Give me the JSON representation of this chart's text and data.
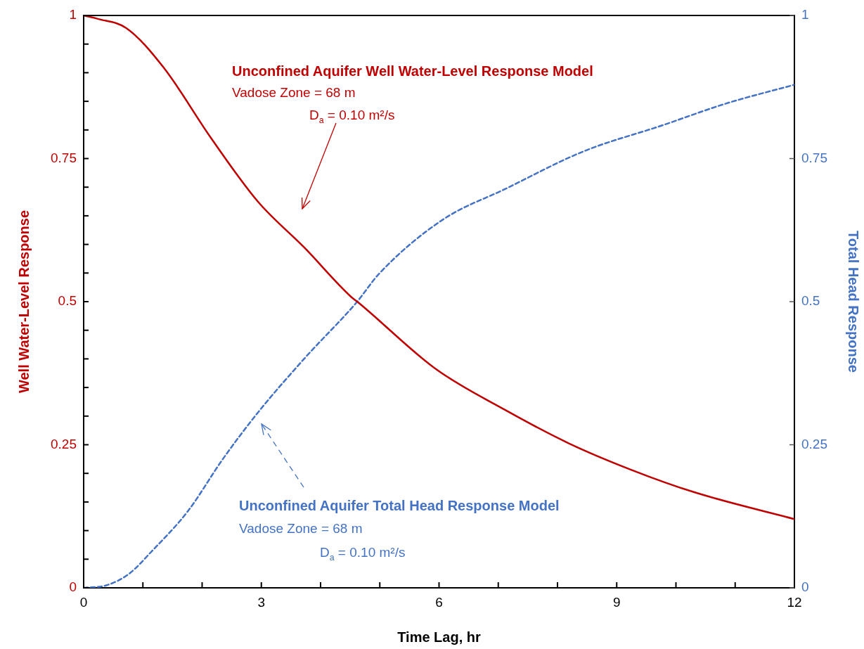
{
  "chart_data": {
    "type": "line",
    "xlabel": "Time Lag, hr",
    "ylabel": "Well Water-Level Response",
    "y2label": "Total Head Response",
    "xlim": [
      0,
      12
    ],
    "xticks": [
      0,
      {
        "value": 1,
        "label": null
      },
      {
        "value": 2,
        "label": null
      },
      3,
      {
        "value": 4,
        "label": null
      },
      {
        "value": 5,
        "label": null
      },
      6,
      {
        "value": 7,
        "label": null
      },
      {
        "value": 8,
        "label": null
      },
      9,
      {
        "value": 10,
        "label": null
      },
      {
        "value": 11,
        "label": null
      },
      12
    ],
    "ylim": [
      0,
      1
    ],
    "yticks": [
      0,
      {
        "value": 0.05,
        "label": null
      },
      {
        "value": 0.1,
        "label": null
      },
      {
        "value": 0.15,
        "label": null
      },
      {
        "value": 0.2,
        "label": null
      },
      0.25,
      {
        "value": 0.3,
        "label": null
      },
      {
        "value": 0.35,
        "label": null
      },
      {
        "value": 0.4,
        "label": null
      },
      {
        "value": 0.45,
        "label": null
      },
      0.5,
      {
        "value": 0.55,
        "label": null
      },
      {
        "value": 0.6,
        "label": null
      },
      {
        "value": 0.65,
        "label": null
      },
      {
        "value": 0.7,
        "label": null
      },
      0.75,
      {
        "value": 0.8,
        "label": null
      },
      {
        "value": 0.85,
        "label": null
      },
      {
        "value": 0.9,
        "label": null
      },
      {
        "value": 0.95,
        "label": null
      },
      1
    ],
    "y2lim": [
      0,
      1
    ],
    "y2ticks": [
      0,
      0.25,
      0.5,
      0.75,
      1
    ],
    "grid": false,
    "legend": false,
    "marker": "none",
    "series": [
      {
        "color": "#c00000",
        "line_style": "solid",
        "x": [
          0,
          0.24,
          0.72,
          1.35,
          2.15,
          2.94,
          3.73,
          4.52,
          4.62,
          5.95,
          7.13,
          8.18,
          9.25,
          10.31,
          12
        ],
        "values": [
          1,
          0.994,
          0.978,
          0.909,
          0.786,
          0.675,
          0.594,
          0.508,
          0.5,
          0.382,
          0.31,
          0.253,
          0.206,
          0.167,
          0.12
        ]
      },
      {
        "color": "#4472c4",
        "line_style": "dashed",
        "axis": "y2",
        "x": [
          0,
          0.37,
          0.76,
          1.16,
          1.76,
          2.35,
          2.94,
          3.73,
          4.61,
          4.99,
          6.06,
          7.12,
          8.45,
          9.77,
          10.84,
          12
        ],
        "values": [
          0,
          0.004,
          0.024,
          0.065,
          0.134,
          0.225,
          0.306,
          0.401,
          0.499,
          0.549,
          0.643,
          0.697,
          0.763,
          0.808,
          0.846,
          0.879
        ]
      }
    ],
    "annotations": [
      "Unconfined Aquifer Well Water-Level Response Model",
      "Vadose Zone = 68 m",
      "D$_{a}$ = 0.10 m²/s",
      "Unconfined Aquifer Total Head Response Model",
      "Vadose Zone = 68 m",
      "D$_{a}$ = 0.10 m²/s"
    ]
  }
}
